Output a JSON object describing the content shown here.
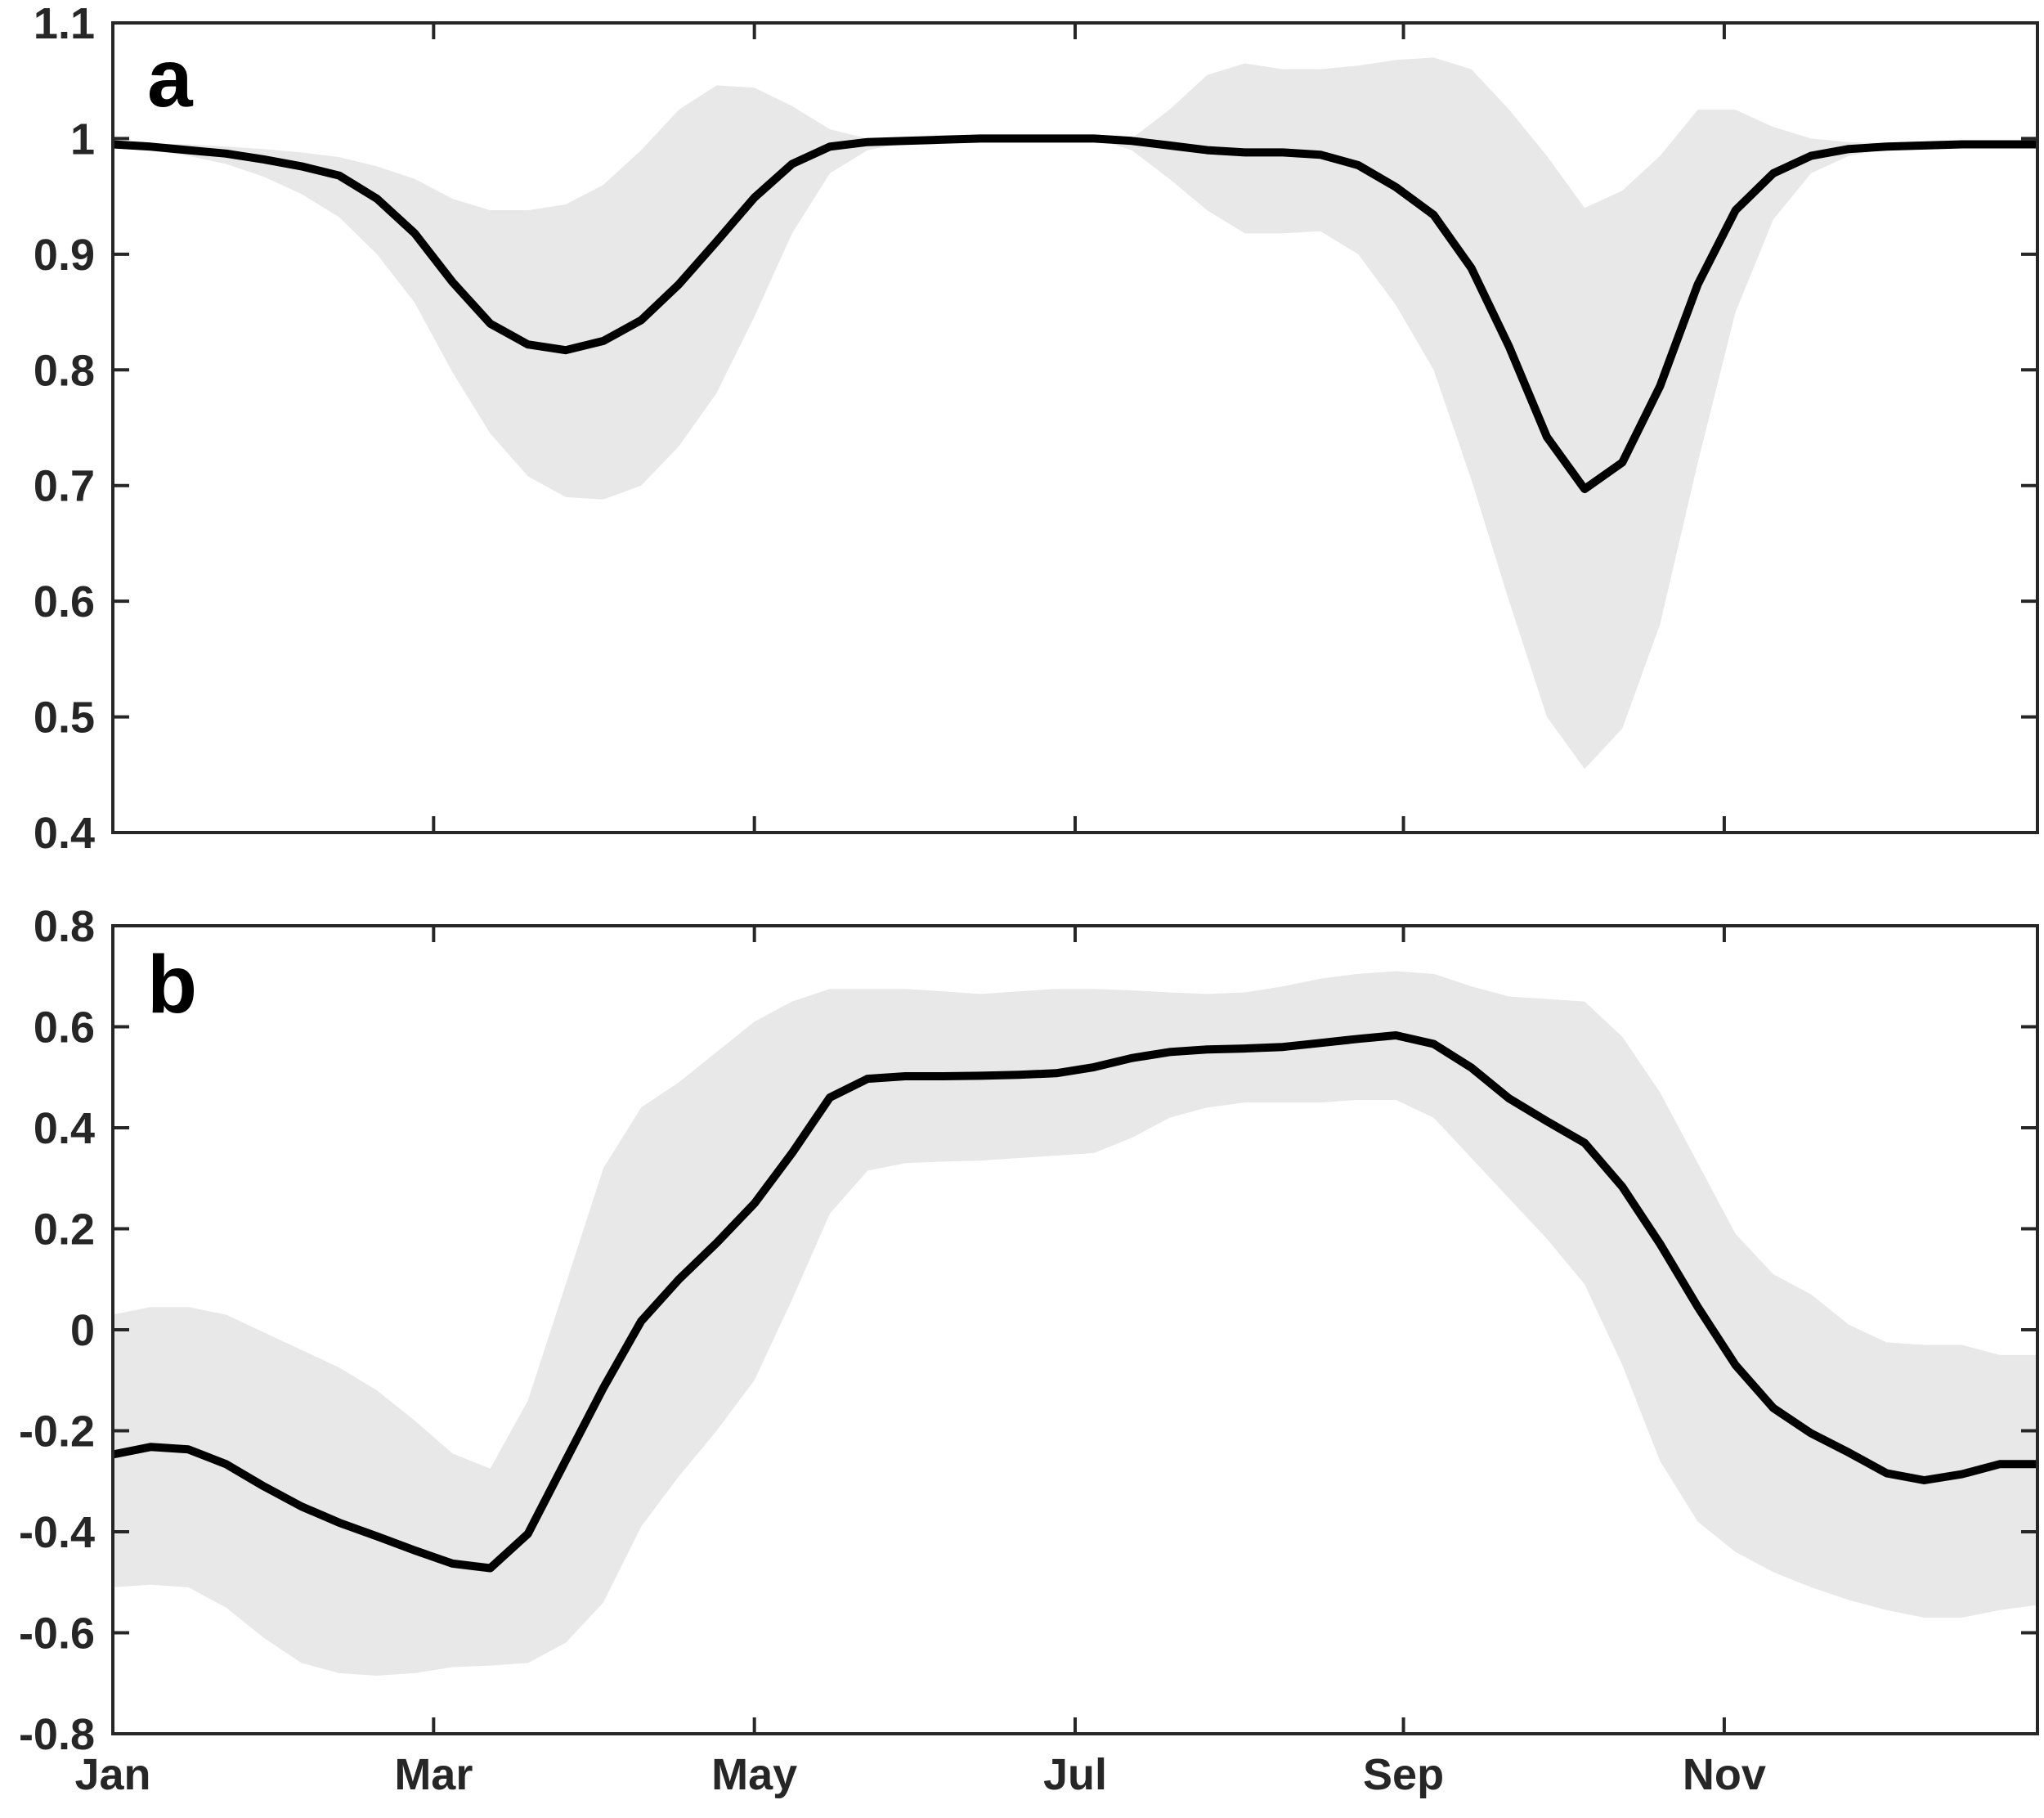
{
  "chart_data": [
    {
      "type": "line",
      "panel_label": "a",
      "xlabel": "",
      "ylabel": "",
      "xlim": [
        1,
        52
      ],
      "ylim": [
        0.4,
        1.1
      ],
      "yticks": [
        0.4,
        0.5,
        0.6,
        0.7,
        0.8,
        0.9,
        1,
        1.1
      ],
      "ytick_labels": [
        "0.4",
        "0.5",
        "0.6",
        "0.7",
        "0.8",
        "0.9",
        "1",
        "1.1"
      ],
      "xticks": [
        1,
        9.5,
        18,
        26.5,
        35.2,
        43.7
      ],
      "xtick_labels": [
        "Jan",
        "Mar",
        "May",
        "Jul",
        "Sep",
        "Nov"
      ],
      "grid": false,
      "colors": {
        "line": "#000000",
        "band": "#e8e8e8",
        "axes": "#262626"
      },
      "series": [
        {
          "values": [
            0.995,
            0.993,
            0.99,
            0.987,
            0.982,
            0.976,
            0.968,
            0.948,
            0.918,
            0.876,
            0.84,
            0.822,
            0.817,
            0.825,
            0.843,
            0.874,
            0.911,
            0.949,
            0.978,
            0.993,
            0.997,
            0.998,
            0.999,
            1.0,
            1.0,
            1.0,
            1.0,
            0.998,
            0.994,
            0.99,
            0.988,
            0.988,
            0.986,
            0.977,
            0.958,
            0.934,
            0.888,
            0.82,
            0.742,
            0.697,
            0.72,
            0.786,
            0.874,
            0.938,
            0.97,
            0.985,
            0.991,
            0.993,
            0.994,
            0.995,
            0.995,
            0.995
          ],
          "lower": [
            0.993,
            0.99,
            0.985,
            0.978,
            0.967,
            0.952,
            0.932,
            0.9,
            0.858,
            0.798,
            0.745,
            0.708,
            0.69,
            0.688,
            0.7,
            0.734,
            0.78,
            0.846,
            0.918,
            0.97,
            0.99,
            0.996,
            0.998,
            1.0,
            1.0,
            1.0,
            1.0,
            0.99,
            0.965,
            0.938,
            0.918,
            0.918,
            0.92,
            0.9,
            0.856,
            0.8,
            0.705,
            0.6,
            0.5,
            0.455,
            0.49,
            0.58,
            0.72,
            0.85,
            0.93,
            0.97,
            0.985,
            0.991,
            0.993,
            0.994,
            0.995,
            0.995
          ],
          "upper": [
            0.997,
            0.996,
            0.995,
            0.993,
            0.991,
            0.988,
            0.984,
            0.976,
            0.965,
            0.948,
            0.938,
            0.938,
            0.943,
            0.96,
            0.99,
            1.025,
            1.046,
            1.044,
            1.028,
            1.008,
            1.0,
            1.0,
            1.0,
            1.0,
            1.0,
            1.0,
            1.0,
            1.0,
            1.025,
            1.055,
            1.065,
            1.06,
            1.06,
            1.063,
            1.068,
            1.07,
            1.06,
            1.025,
            0.985,
            0.94,
            0.955,
            0.985,
            1.025,
            1.025,
            1.01,
            1.0,
            0.997,
            0.996,
            0.996,
            0.996,
            0.996,
            0.996
          ]
        }
      ]
    },
    {
      "type": "line",
      "panel_label": "b",
      "xlabel": "",
      "ylabel": "",
      "xlim": [
        1,
        52
      ],
      "ylim": [
        -0.8,
        0.8
      ],
      "yticks": [
        -0.8,
        -0.6,
        -0.4,
        -0.2,
        0,
        0.2,
        0.4,
        0.6,
        0.8
      ],
      "ytick_labels": [
        "-0.8",
        "-0.6",
        "-0.4",
        "-0.2",
        "0",
        "0.2",
        "0.4",
        "0.6",
        "0.8"
      ],
      "xticks": [
        1,
        9.5,
        18,
        26.5,
        35.2,
        43.7
      ],
      "xtick_labels": [
        "Jan",
        "Mar",
        "May",
        "Jul",
        "Sep",
        "Nov"
      ],
      "grid": false,
      "colors": {
        "line": "#000000",
        "band": "#e8e8e8",
        "axes": "#262626"
      },
      "series": [
        {
          "values": [
            -0.247,
            -0.232,
            -0.237,
            -0.266,
            -0.31,
            -0.35,
            -0.382,
            -0.409,
            -0.437,
            -0.463,
            -0.472,
            -0.404,
            -0.259,
            -0.115,
            0.017,
            0.1,
            0.172,
            0.25,
            0.35,
            0.46,
            0.497,
            0.502,
            0.502,
            0.503,
            0.505,
            0.508,
            0.52,
            0.538,
            0.55,
            0.555,
            0.557,
            0.56,
            0.568,
            0.576,
            0.583,
            0.566,
            0.519,
            0.458,
            0.413,
            0.37,
            0.283,
            0.17,
            0.045,
            -0.07,
            -0.155,
            -0.205,
            -0.243,
            -0.284,
            -0.298,
            -0.286,
            -0.266,
            -0.266
          ],
          "lower": [
            -0.51,
            -0.505,
            -0.51,
            -0.55,
            -0.61,
            -0.66,
            -0.68,
            -0.685,
            -0.68,
            -0.668,
            -0.665,
            -0.66,
            -0.62,
            -0.54,
            -0.39,
            -0.29,
            -0.2,
            -0.1,
            0.06,
            0.23,
            0.315,
            0.33,
            0.333,
            0.335,
            0.34,
            0.345,
            0.35,
            0.38,
            0.42,
            0.44,
            0.45,
            0.45,
            0.45,
            0.455,
            0.455,
            0.42,
            0.34,
            0.26,
            0.18,
            0.09,
            -0.07,
            -0.26,
            -0.38,
            -0.44,
            -0.48,
            -0.51,
            -0.535,
            -0.555,
            -0.57,
            -0.57,
            -0.555,
            -0.545
          ],
          "upper": [
            0.03,
            0.045,
            0.045,
            0.03,
            -0.005,
            -0.04,
            -0.075,
            -0.12,
            -0.18,
            -0.245,
            -0.275,
            -0.14,
            0.09,
            0.32,
            0.44,
            0.49,
            0.55,
            0.61,
            0.65,
            0.675,
            0.675,
            0.675,
            0.67,
            0.665,
            0.67,
            0.675,
            0.675,
            0.672,
            0.668,
            0.665,
            0.668,
            0.68,
            0.695,
            0.705,
            0.71,
            0.705,
            0.68,
            0.66,
            0.655,
            0.65,
            0.58,
            0.47,
            0.33,
            0.19,
            0.11,
            0.07,
            0.01,
            -0.025,
            -0.03,
            -0.03,
            -0.05,
            -0.05
          ]
        }
      ]
    }
  ]
}
